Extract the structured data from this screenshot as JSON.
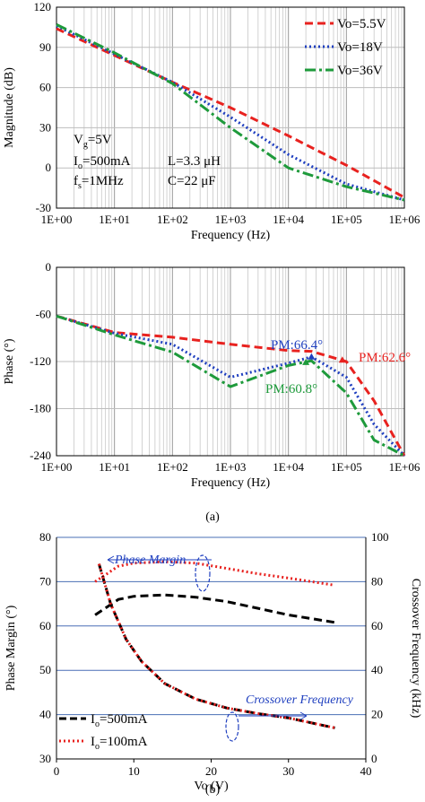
{
  "chart_data": [
    {
      "type": "line",
      "xlabel": "Frequency (Hz)",
      "ylabel": "Magnitude (dB)",
      "x_scale": "log",
      "xlim": [
        1,
        1000000
      ],
      "ylim": [
        -30,
        120
      ],
      "x_tick_labels": [
        "1E+00",
        "1E+01",
        "1E+02",
        "1E+03",
        "1E+04",
        "1E+05",
        "1E+06"
      ],
      "y_ticks": [
        -30,
        0,
        30,
        60,
        90,
        120
      ],
      "grid": true,
      "legend": "top-right",
      "series": [
        {
          "name": "Vo=5.5V",
          "color": "#e8221f",
          "dash": "dash",
          "x": [
            1,
            10,
            100,
            1000,
            10000,
            100000,
            1000000
          ],
          "y": [
            104,
            84,
            64,
            45,
            24,
            2,
            -22
          ]
        },
        {
          "name": "Vo=18V",
          "color": "#1f3fbf",
          "dash": "dot",
          "x": [
            1,
            10,
            100,
            1000,
            10000,
            100000,
            1000000
          ],
          "y": [
            106,
            85,
            64,
            38,
            10,
            -12,
            -24
          ]
        },
        {
          "name": "Vo=36V",
          "color": "#1e9a3b",
          "dash": "dashdot",
          "x": [
            1,
            10,
            100,
            1000,
            10000,
            100000,
            1000000
          ],
          "y": [
            107,
            86,
            63,
            30,
            0,
            -14,
            -24
          ]
        }
      ],
      "annotations": {
        "vg": "V",
        "vg_sub": "g",
        "vg_val": "=5V",
        "io": "I",
        "io_sub": "o",
        "io_val": "=500mA",
        "fs": "f",
        "fs_sub": "s",
        "fs_val": "=1MHz",
        "l": "L=3.3 μH",
        "c": "C=22 μF"
      }
    },
    {
      "type": "line",
      "xlabel": "Frequency (Hz)",
      "ylabel": "Phase (°)",
      "x_scale": "log",
      "xlim": [
        1,
        1000000
      ],
      "ylim": [
        -240,
        0
      ],
      "x_tick_labels": [
        "1E+00",
        "1E+01",
        "1E+02",
        "1E+03",
        "1E+04",
        "1E+05",
        "1E+06"
      ],
      "y_ticks": [
        -240,
        -180,
        -120,
        -60,
        0
      ],
      "grid": true,
      "series": [
        {
          "name": "Vo=5.5V",
          "color": "#e8221f",
          "dash": "dash",
          "x": [
            1,
            10,
            100,
            1000,
            10000,
            25000,
            100000,
            300000,
            1000000
          ],
          "y": [
            -62,
            -83,
            -89,
            -98,
            -106,
            -107,
            -120,
            -170,
            -240
          ]
        },
        {
          "name": "Vo=18V",
          "color": "#1f3fbf",
          "dash": "dot",
          "x": [
            1,
            10,
            100,
            1000,
            10000,
            25000,
            100000,
            300000,
            1000000
          ],
          "y": [
            -62,
            -84,
            -98,
            -140,
            -122,
            -114,
            -140,
            -200,
            -240
          ]
        },
        {
          "name": "Vo=36V",
          "color": "#1e9a3b",
          "dash": "dashdot",
          "x": [
            1,
            10,
            100,
            1000,
            10000,
            25000,
            100000,
            300000,
            1000000
          ],
          "y": [
            -62,
            -86,
            -108,
            -152,
            -125,
            -119,
            -160,
            -220,
            -240
          ]
        }
      ],
      "annotations": [
        "PM:66.4°",
        "PM:62.6°",
        "PM:60.8°"
      ],
      "caption": "(a)"
    },
    {
      "type": "line",
      "xlabel": "Vo (V)",
      "ylabel": "Phase Margin (°)",
      "y2label": "Crossover Frequency (kHz)",
      "xlim": [
        0,
        40
      ],
      "ylim": [
        30,
        80
      ],
      "y2lim": [
        0,
        100
      ],
      "x_ticks": [
        0,
        10,
        20,
        30,
        40
      ],
      "y_ticks": [
        30,
        40,
        50,
        60,
        70,
        80
      ],
      "y2_ticks": [
        0,
        20,
        40,
        60,
        80,
        100
      ],
      "grid": true,
      "legend": "bottom-left",
      "series": [
        {
          "name": "Io=500mA",
          "axis": "left",
          "color": "#000000",
          "dash": "dash",
          "x": [
            5,
            8,
            10,
            14,
            18,
            22,
            26,
            30,
            36
          ],
          "y": [
            62.5,
            66,
            66.7,
            67,
            66.5,
            65.5,
            64,
            62.5,
            60.8
          ]
        },
        {
          "name": "Io=100mA",
          "axis": "left",
          "color": "#e8221f",
          "dash": "dot",
          "x": [
            5,
            8,
            10,
            14,
            18,
            22,
            26,
            30,
            36
          ],
          "y": [
            70,
            73.5,
            74.2,
            74.5,
            74.2,
            73,
            71.8,
            70.8,
            69.2
          ]
        },
        {
          "name": "Io=500mA",
          "axis": "right",
          "color": "#000000",
          "dash": "dash",
          "x": [
            5.5,
            7,
            9,
            11,
            14,
            18,
            22,
            26,
            30,
            36
          ],
          "y": [
            88,
            70,
            54,
            44,
            34,
            27,
            23,
            20.5,
            18.5,
            14
          ]
        },
        {
          "name": "Io=100mA",
          "axis": "right",
          "color": "#e8221f",
          "dash": "dot",
          "x": [
            5.5,
            7,
            9,
            11,
            14,
            18,
            22,
            26,
            30,
            36
          ],
          "y": [
            88,
            70,
            54,
            44,
            34,
            27,
            23,
            20.5,
            18.5,
            14
          ]
        }
      ],
      "annotations": {
        "phase_margin": "Phase Margin",
        "crossover": "Crossover Frequency"
      },
      "legend_entries": [
        {
          "prefix": "I",
          "sub": "o",
          "suffix": "=500mA",
          "color": "#000000",
          "dash": "dash"
        },
        {
          "prefix": "I",
          "sub": "o",
          "suffix": "=100mA",
          "color": "#e8221f",
          "dash": "dot"
        }
      ],
      "caption": "(b)"
    }
  ]
}
